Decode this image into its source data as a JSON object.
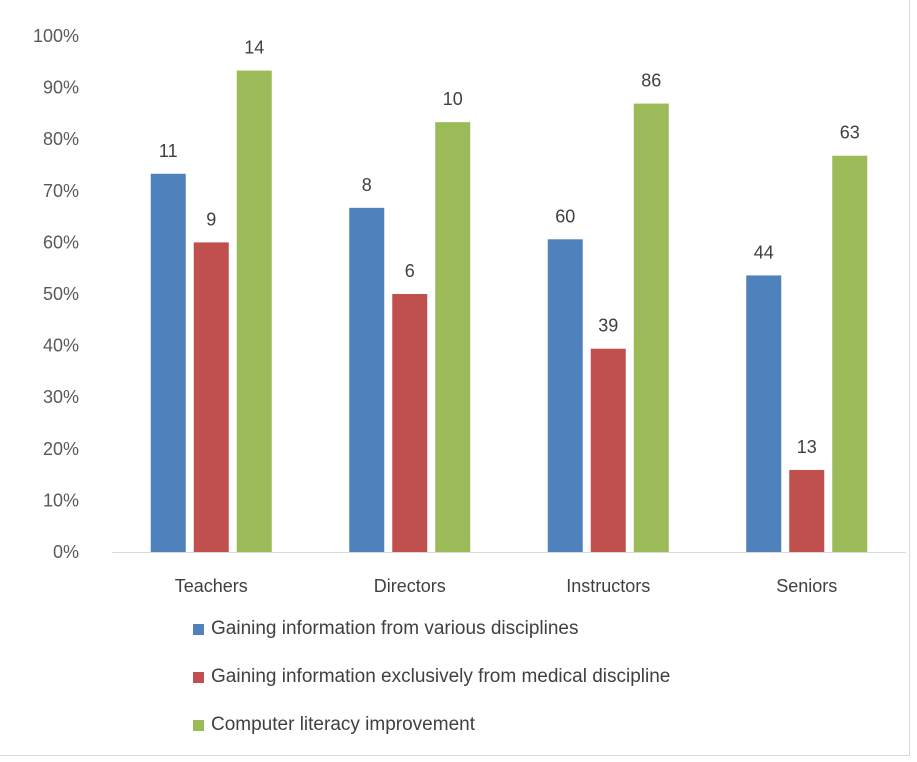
{
  "chart_data": {
    "type": "bar",
    "categories": [
      "Teachers",
      "Directors",
      "Instructors",
      "Seniors"
    ],
    "series": [
      {
        "name": "Gaining information from various disciplines",
        "color": "#4f81bd",
        "values": [
          0.733,
          0.667,
          0.606,
          0.536
        ],
        "labels": [
          "11",
          "8",
          "60",
          "44"
        ]
      },
      {
        "name": "Gaining information exclusively from medical discipline",
        "color": "#c0504d",
        "values": [
          0.6,
          0.5,
          0.394,
          0.159
        ],
        "labels": [
          "9",
          "6",
          "39",
          "13"
        ]
      },
      {
        "name": "Computer literacy improvement",
        "color": "#9bbb59",
        "values": [
          0.933,
          0.833,
          0.869,
          0.768
        ],
        "labels": [
          "14",
          "10",
          "86",
          "63"
        ]
      }
    ],
    "ylim": [
      0,
      1
    ],
    "y_ticks": [
      "0%",
      "10%",
      "20%",
      "30%",
      "40%",
      "50%",
      "60%",
      "70%",
      "80%",
      "90%",
      "100%"
    ],
    "grid": false,
    "legend_position": "bottom",
    "title": "",
    "xlabel": "",
    "ylabel": ""
  }
}
